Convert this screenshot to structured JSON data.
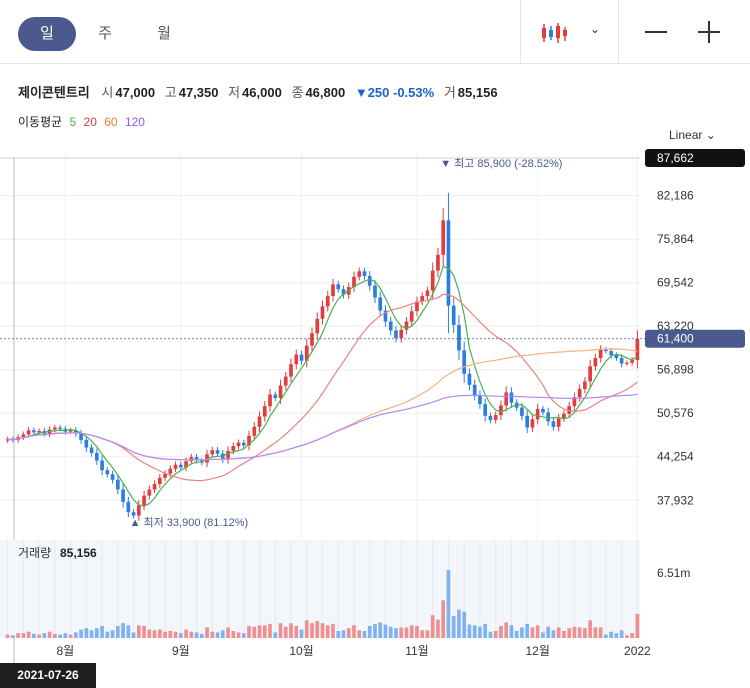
{
  "period_tabs": [
    {
      "label": "일",
      "active": true
    },
    {
      "label": "주",
      "active": false
    },
    {
      "label": "월",
      "active": false
    }
  ],
  "toolbar": {
    "chart_type_icon": "candlestick-icon",
    "dropdown_icon": "chevron-down-icon",
    "zoom_out_icon": "minus-icon",
    "zoom_in_icon": "plus-icon"
  },
  "quote": {
    "name": "제이콘텐트리",
    "open_label": "시",
    "open": "47,000",
    "high_label": "고",
    "high": "47,350",
    "low_label": "저",
    "low": "46,000",
    "close_label": "종",
    "close": "46,800",
    "change": "▼250 -0.53%",
    "volume_label": "거",
    "volume": "85,156"
  },
  "moving_average": {
    "label": "이동평균",
    "periods": [
      "5",
      "20",
      "60",
      "120"
    ]
  },
  "scale_mode": "Linear",
  "volume_panel": {
    "label": "거래량",
    "value": "85,156"
  },
  "crosshair_date": "2021-07-26",
  "colors": {
    "up": "#e23c3c",
    "down": "#2a7de1",
    "ma5": "#4caf50",
    "ma20": "#f08080",
    "ma60": "#f5b27a",
    "ma120": "#b388ff",
    "accent": "#4a5a8f",
    "price_badge": "#4a5a8f"
  },
  "chart_data": {
    "type": "candlestick",
    "price_axis": {
      "ticks": [
        37932,
        44254,
        50576,
        56898,
        63220,
        69542,
        75864,
        82186
      ],
      "top_label": "87,662",
      "current_label": "61,400",
      "ylim": [
        33900,
        87662
      ]
    },
    "x_tick_labels": [
      "8월",
      "9월",
      "10월",
      "11월",
      "12월",
      "2022"
    ],
    "annotations": {
      "max": "최고 85,900 (-28.52%)",
      "min": "최저 33,900 (81.12%)"
    },
    "volume_axis": {
      "label": "6.51m"
    },
    "closes": [
      46800,
      46700,
      47100,
      47500,
      48100,
      47800,
      48000,
      47600,
      48200,
      48500,
      48300,
      47900,
      48100,
      47600,
      46700,
      45600,
      44800,
      43700,
      42300,
      41700,
      40900,
      39500,
      37700,
      36200,
      35700,
      37200,
      38600,
      39500,
      40300,
      41200,
      41800,
      42500,
      43100,
      42700,
      43600,
      44200,
      43700,
      43400,
      44600,
      45200,
      44700,
      43900,
      45100,
      45800,
      46300,
      45900,
      47300,
      48600,
      50100,
      51600,
      53300,
      52800,
      54600,
      55900,
      57700,
      59100,
      58200,
      60400,
      62200,
      64300,
      66100,
      67600,
      69300,
      68600,
      67800,
      68900,
      70400,
      71200,
      70500,
      69100,
      67400,
      65500,
      63900,
      62600,
      61500,
      62700,
      63900,
      65400,
      66800,
      67600,
      68400,
      71300,
      73600,
      78600,
      66200,
      63400,
      59700,
      56300,
      54700,
      53200,
      51900,
      50200,
      49600,
      50300,
      51700,
      53600,
      52100,
      51400,
      50200,
      48500,
      49700,
      51200,
      50700,
      49400,
      48600,
      49800,
      50500,
      51600,
      52900,
      54100,
      55200,
      57400,
      58600,
      59800,
      59600,
      59000,
      58600,
      57800,
      57900,
      58300,
      61400
    ]
  }
}
